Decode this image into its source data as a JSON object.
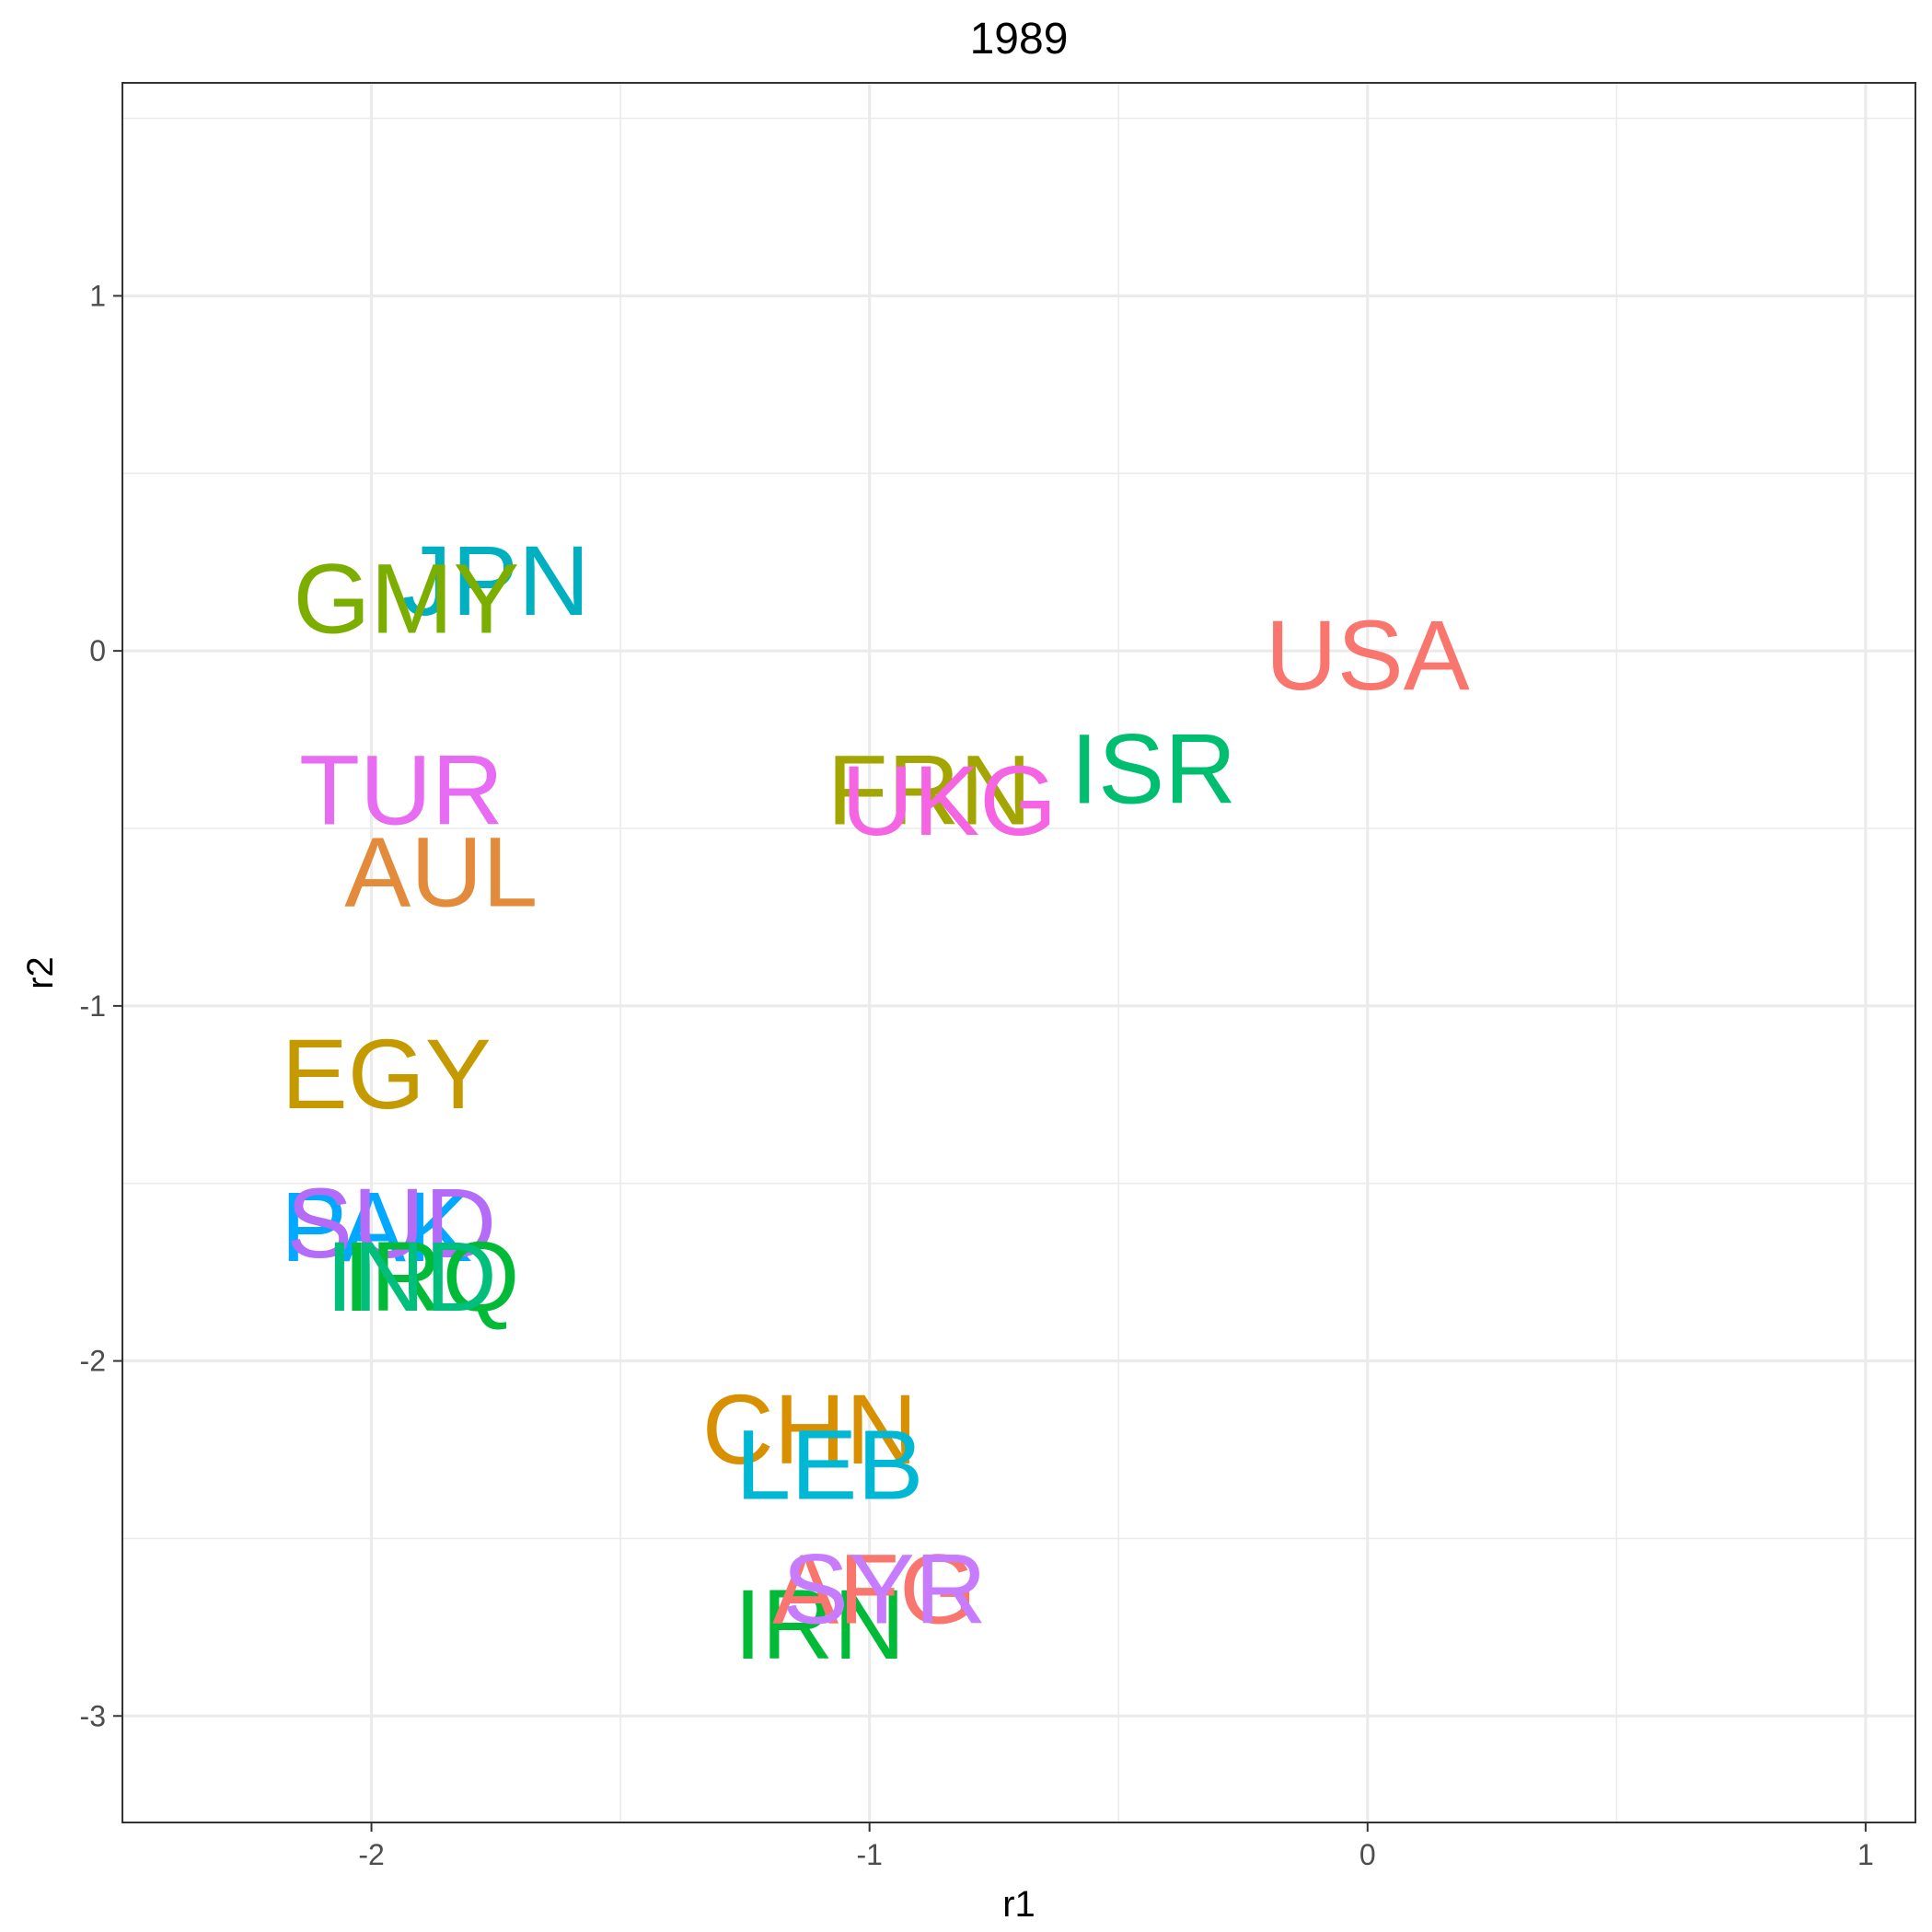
{
  "chart_data": {
    "type": "scatter",
    "title": "1989",
    "xlabel": "r1",
    "ylabel": "r2",
    "xlim": [
      -2.5,
      1.1
    ],
    "ylim": [
      -3.3,
      1.6
    ],
    "x_ticks": [
      -2,
      -1,
      0,
      1
    ],
    "y_ticks": [
      -3,
      -2,
      -1,
      0,
      1
    ],
    "x_tick_labels": [
      "-2",
      "-1",
      "0",
      "1"
    ],
    "y_tick_labels": [
      "-3",
      "-2",
      "-1",
      "0",
      "1"
    ],
    "grid": true,
    "legend": "none",
    "points": [
      {
        "label": "USA",
        "x": 0.0,
        "y": -0.01,
        "color": "#F8766D"
      },
      {
        "label": "ISR",
        "x": -0.43,
        "y": -0.33,
        "color": "#00BE70"
      },
      {
        "label": "FRN",
        "x": -0.88,
        "y": -0.39,
        "color": "#A3A500"
      },
      {
        "label": "UKG",
        "x": -0.84,
        "y": -0.42,
        "color": "#F564E3"
      },
      {
        "label": "JPN",
        "x": -1.75,
        "y": 0.2,
        "color": "#00B0C0"
      },
      {
        "label": "GMY",
        "x": -1.93,
        "y": 0.15,
        "color": "#7CAE00"
      },
      {
        "label": "TUR",
        "x": -1.94,
        "y": -0.39,
        "color": "#E76BF3"
      },
      {
        "label": "AUL",
        "x": -1.86,
        "y": -0.62,
        "color": "#E48A3B"
      },
      {
        "label": "EGY",
        "x": -1.97,
        "y": -1.19,
        "color": "#C49A00"
      },
      {
        "label": "PAK",
        "x": -1.99,
        "y": -1.62,
        "color": "#00A9FF"
      },
      {
        "label": "SUD",
        "x": -1.96,
        "y": -1.61,
        "color": "#B46BF7"
      },
      {
        "label": "IRQ",
        "x": -1.88,
        "y": -1.76,
        "color": "#00BA38"
      },
      {
        "label": "IND",
        "x": -1.92,
        "y": -1.76,
        "color": "#00BF7D"
      },
      {
        "label": "CHN",
        "x": -1.12,
        "y": -2.19,
        "color": "#D89000"
      },
      {
        "label": "LEB",
        "x": -1.08,
        "y": -2.29,
        "color": "#00B8D4"
      },
      {
        "label": "IRN",
        "x": -1.1,
        "y": -2.74,
        "color": "#00BA38"
      },
      {
        "label": "AFG",
        "x": -0.99,
        "y": -2.64,
        "color": "#F8766D"
      },
      {
        "label": "SYR",
        "x": -0.97,
        "y": -2.64,
        "color": "#C77CFF"
      }
    ]
  }
}
